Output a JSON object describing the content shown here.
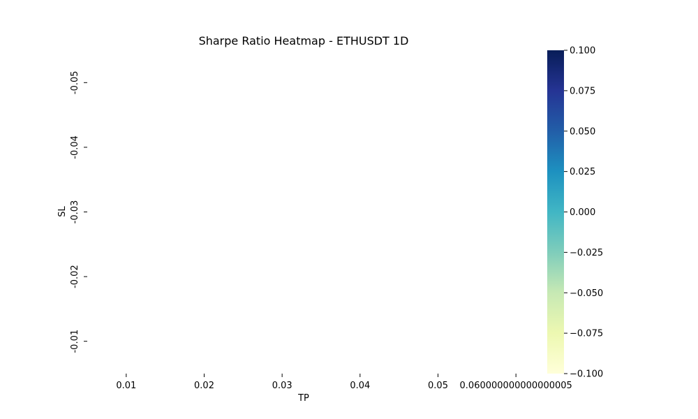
{
  "chart_data": {
    "type": "heatmap",
    "title": "Sharpe Ratio Heatmap - ETHUSDT 1D",
    "xlabel": "TP",
    "ylabel": "SL",
    "x_categories": [
      "0.01",
      "0.02",
      "0.03",
      "0.04",
      "0.05",
      "0.060000000000000005"
    ],
    "y_categories": [
      "-0.05",
      "-0.04",
      "-0.03",
      "-0.02",
      "-0.01"
    ],
    "values": [
      [
        null,
        null,
        null,
        null,
        null,
        null
      ],
      [
        null,
        null,
        null,
        null,
        null,
        null
      ],
      [
        null,
        null,
        null,
        null,
        null,
        null
      ],
      [
        null,
        null,
        null,
        null,
        null,
        null
      ],
      [
        null,
        null,
        null,
        null,
        null,
        null
      ]
    ],
    "colorbar": {
      "colormap": "YlGnBu",
      "range": [
        -0.1,
        0.1
      ],
      "ticks": [
        "0.100",
        "0.075",
        "0.050",
        "0.025",
        "0.000",
        "−0.025",
        "−0.050",
        "−0.075",
        "−0.100"
      ],
      "colors": [
        "#ffffd9",
        "#edf8b1",
        "#c7e9b4",
        "#7fcdbb",
        "#41b6c4",
        "#1d91c0",
        "#225ea8",
        "#253494",
        "#081d58"
      ]
    },
    "grid": false
  }
}
